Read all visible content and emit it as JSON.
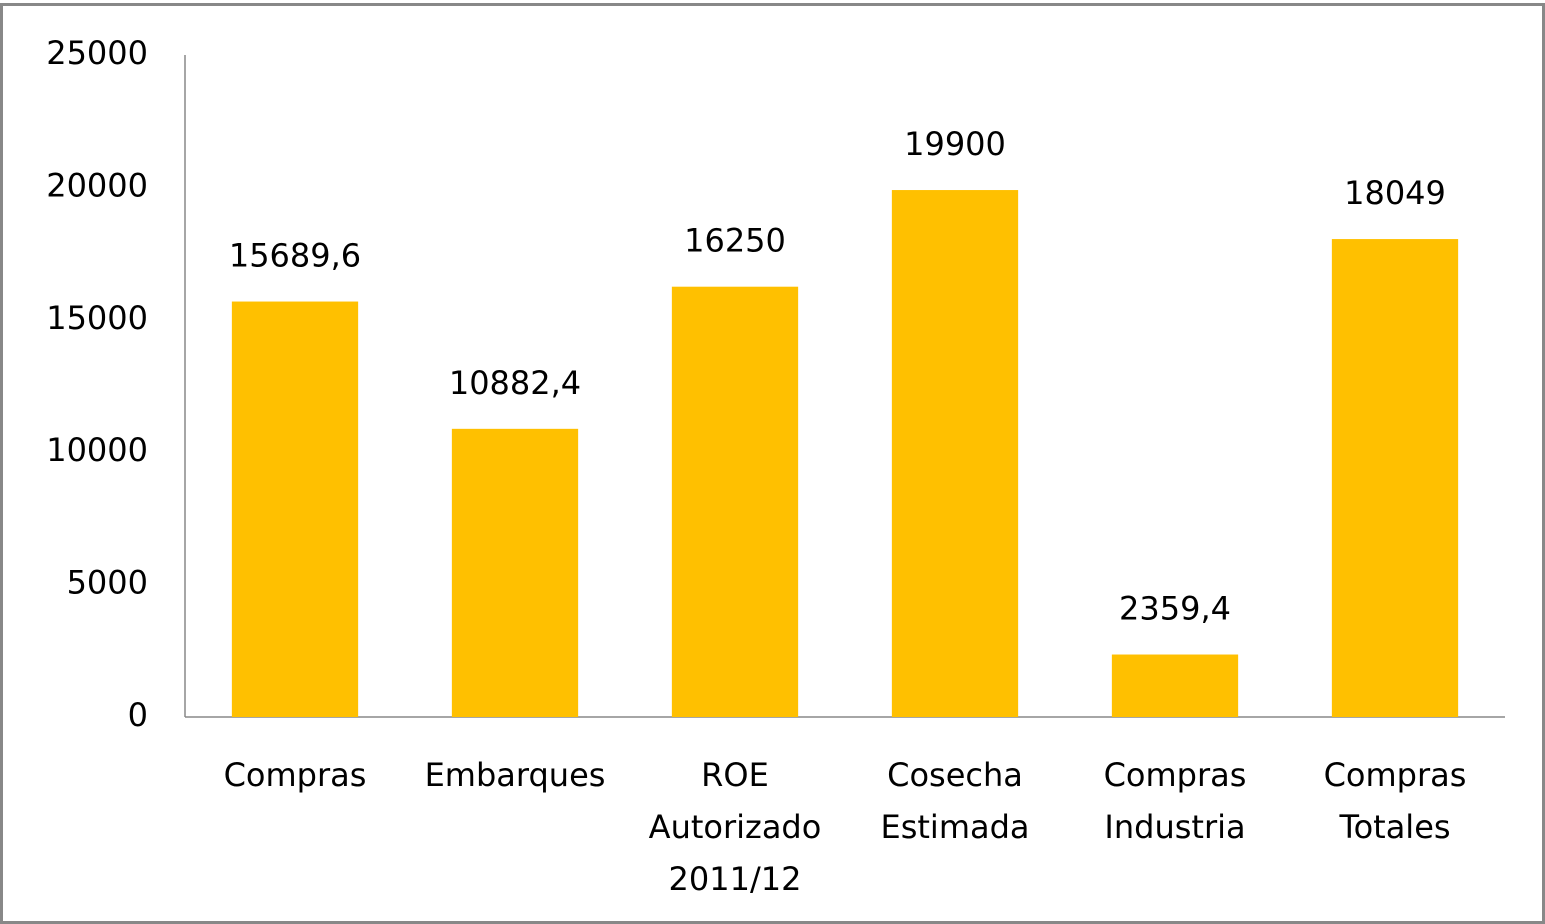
{
  "chart_data": {
    "type": "bar",
    "categories": [
      "Compras",
      "Embarques",
      "ROE Autorizado 2011/12",
      "Cosecha Estimada",
      "Compras Industria",
      "Compras Totales"
    ],
    "values": [
      15689.6,
      10882.4,
      16250,
      19900,
      2359.4,
      18049
    ],
    "value_labels": [
      "15689,6",
      "10882,4",
      "16250",
      "19900",
      "2359,4",
      "18049"
    ],
    "color": "#ffc000",
    "ylim": [
      0,
      25000
    ],
    "yticks": [
      0,
      5000,
      10000,
      15000,
      20000,
      25000
    ],
    "grid": false
  }
}
